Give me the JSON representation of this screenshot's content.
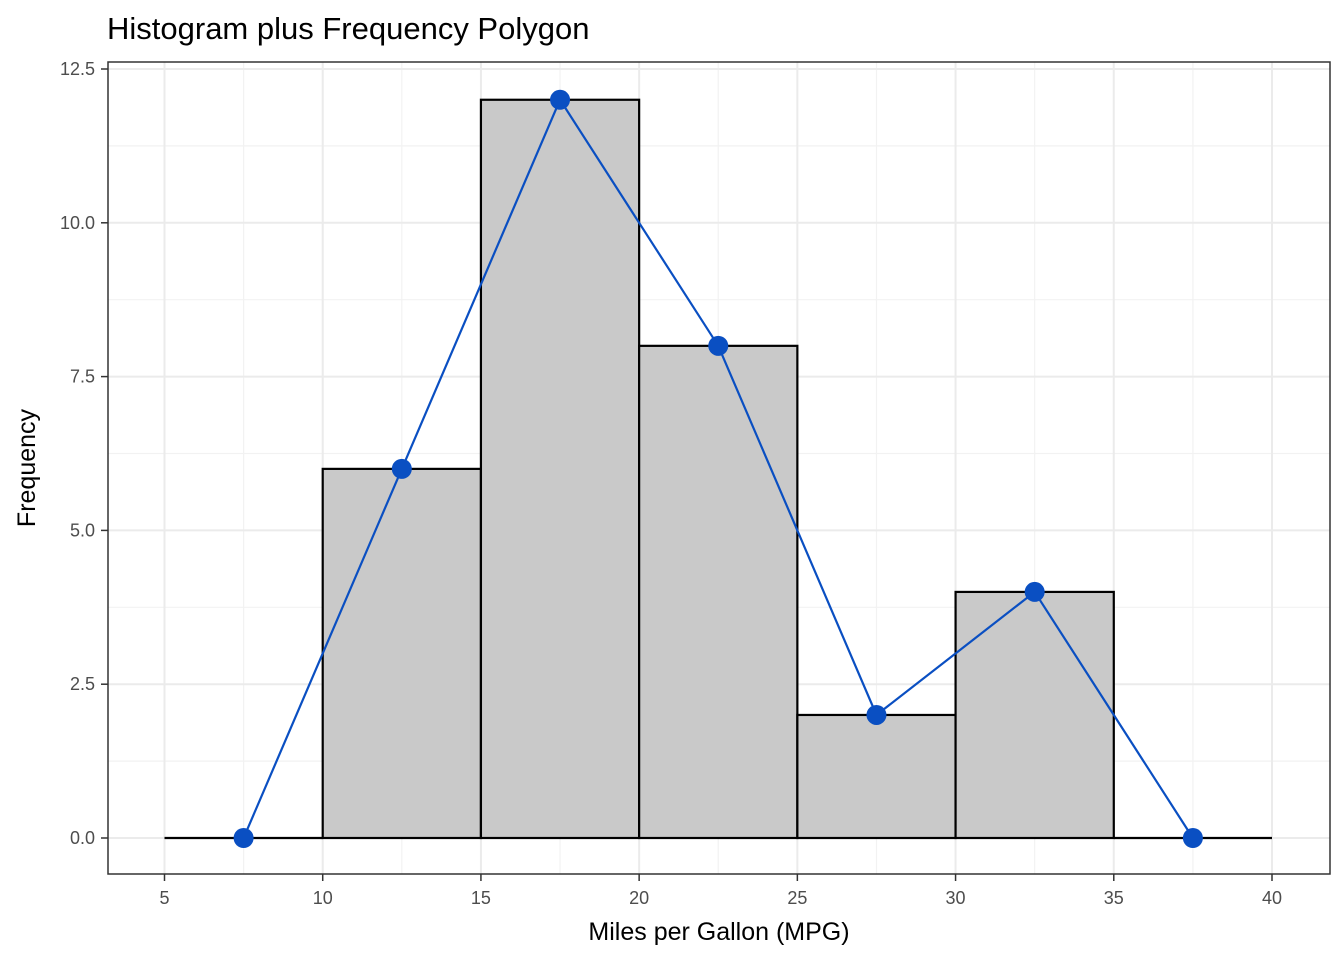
{
  "chart_data": {
    "type": "bar",
    "title": "Histogram plus Frequency Polygon",
    "xlabel": "Miles per Gallon (MPG)",
    "ylabel": "Frequency",
    "xlim": [
      5,
      40
    ],
    "ylim": [
      0,
      12.5
    ],
    "x_ticks": [
      "5",
      "10",
      "15",
      "20",
      "25",
      "30",
      "35",
      "40"
    ],
    "y_ticks": [
      "0.0",
      "2.5",
      "5.0",
      "7.5",
      "10.0",
      "12.5"
    ],
    "bins": [
      {
        "start": 5,
        "end": 10,
        "count": 0
      },
      {
        "start": 10,
        "end": 15,
        "count": 6
      },
      {
        "start": 15,
        "end": 20,
        "count": 12
      },
      {
        "start": 20,
        "end": 25,
        "count": 8
      },
      {
        "start": 25,
        "end": 30,
        "count": 2
      },
      {
        "start": 30,
        "end": 35,
        "count": 4
      },
      {
        "start": 35,
        "end": 40,
        "count": 0
      }
    ],
    "polygon": {
      "x": [
        7.5,
        12.5,
        17.5,
        22.5,
        27.5,
        32.5,
        37.5
      ],
      "y": [
        0,
        6,
        12,
        8,
        2,
        4,
        0
      ]
    },
    "grid": true,
    "colors": {
      "bar_fill": "#c9c9c9",
      "bar_outline": "#000000",
      "polygon": "#0a4fc2"
    }
  }
}
